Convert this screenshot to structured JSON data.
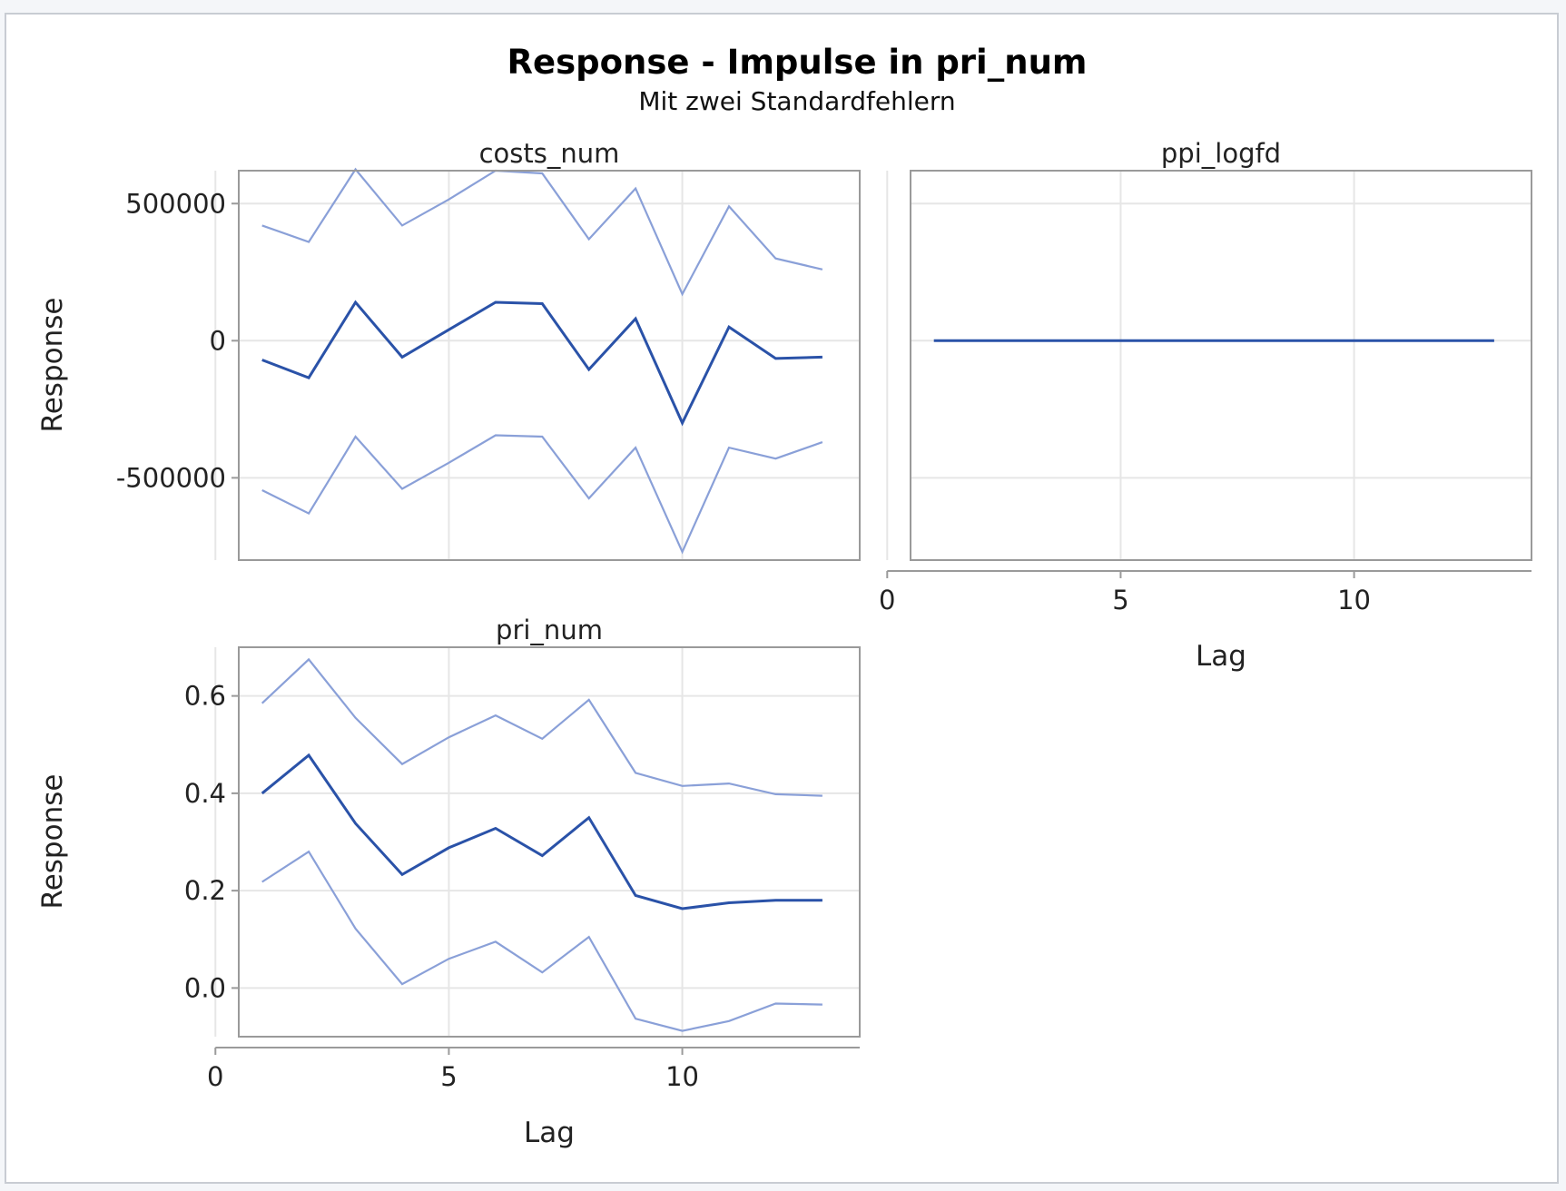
{
  "chart_data": {
    "type": "line",
    "title": "Response - Impulse in pri_num",
    "subtitle": "Mit zwei Standardfehlern",
    "xlabel": "Lag",
    "ylabel": "Response",
    "xlim": [
      0,
      13
    ],
    "x_ticks": [
      0,
      5,
      10
    ],
    "colors": {
      "estimate": "#2a52a8",
      "bounds": "#8aa0d8"
    },
    "grid": true,
    "panels": [
      {
        "id": "costs_num",
        "title": "costs_num",
        "ylim": [
          -800000,
          620000
        ],
        "y_ticks": [
          500000,
          0,
          -500000
        ],
        "y_tick_labels": [
          "500000",
          "0",
          "-500000"
        ],
        "x": [
          1,
          2,
          3,
          4,
          5,
          6,
          7,
          8,
          9,
          10,
          11,
          12,
          13
        ],
        "series": [
          {
            "role": "upper",
            "values": [
              420000,
              360000,
              625000,
              420000,
              515000,
              620000,
              610000,
              370000,
              555000,
              170000,
              490000,
              300000,
              260000
            ]
          },
          {
            "role": "estimate",
            "values": [
              -70000,
              -135000,
              140000,
              -60000,
              40000,
              140000,
              135000,
              -105000,
              80000,
              -300000,
              50000,
              -65000,
              -60000
            ]
          },
          {
            "role": "lower",
            "values": [
              -545000,
              -630000,
              -350000,
              -540000,
              -445000,
              -345000,
              -350000,
              -575000,
              -390000,
              -770000,
              -390000,
              -430000,
              -370000
            ]
          }
        ]
      },
      {
        "id": "ppi_logfd",
        "title": "ppi_logfd",
        "ylim": [
          -800000,
          620000
        ],
        "x": [
          1,
          13
        ],
        "series": [
          {
            "role": "estimate",
            "values": [
              0,
              0
            ]
          }
        ]
      },
      {
        "id": "pri_num",
        "title": "pri_num",
        "ylim": [
          -0.1,
          0.7
        ],
        "y_ticks": [
          0.6,
          0.4,
          0.2,
          0.0
        ],
        "y_tick_labels": [
          "0.6",
          "0.4",
          "0.2",
          "0.0"
        ],
        "x": [
          1,
          2,
          3,
          4,
          5,
          6,
          7,
          8,
          9,
          10,
          11,
          12,
          13
        ],
        "series": [
          {
            "role": "upper",
            "values": [
              0.585,
              0.675,
              0.555,
              0.46,
              0.515,
              0.56,
              0.512,
              0.592,
              0.442,
              0.415,
              0.42,
              0.398,
              0.395
            ]
          },
          {
            "role": "estimate",
            "values": [
              0.4,
              0.478,
              0.338,
              0.233,
              0.288,
              0.328,
              0.272,
              0.35,
              0.19,
              0.163,
              0.175,
              0.18,
              0.18
            ]
          },
          {
            "role": "lower",
            "values": [
              0.218,
              0.28,
              0.122,
              0.008,
              0.06,
              0.095,
              0.032,
              0.105,
              -0.063,
              -0.088,
              -0.068,
              -0.032,
              -0.034
            ]
          }
        ]
      }
    ]
  }
}
